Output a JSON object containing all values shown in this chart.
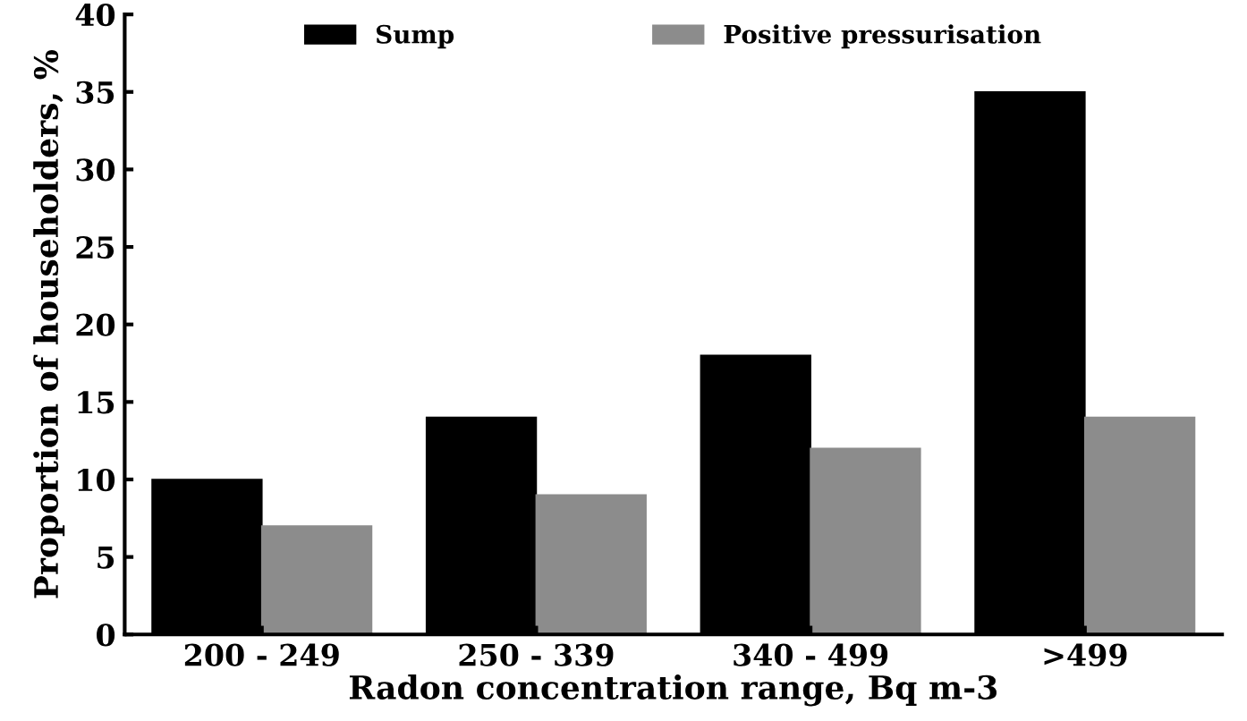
{
  "chart_data": {
    "type": "bar",
    "xlabel": "Radon concentration range, Bq m-3",
    "ylabel": "Proportion of householders, %",
    "categories": [
      "200 - 249",
      "250 - 339",
      "340 - 499",
      ">499"
    ],
    "series": [
      {
        "name": "Sump",
        "color": "#000000",
        "values": [
          10,
          14,
          18,
          35
        ]
      },
      {
        "name": "Positive pressurisation",
        "color": "#8c8c8c",
        "values": [
          7,
          9,
          12,
          14
        ]
      }
    ],
    "ylim": [
      0,
      40
    ],
    "yticks": [
      0,
      5,
      10,
      15,
      20,
      25,
      30,
      35,
      40
    ],
    "grid": false,
    "legend": "top"
  }
}
